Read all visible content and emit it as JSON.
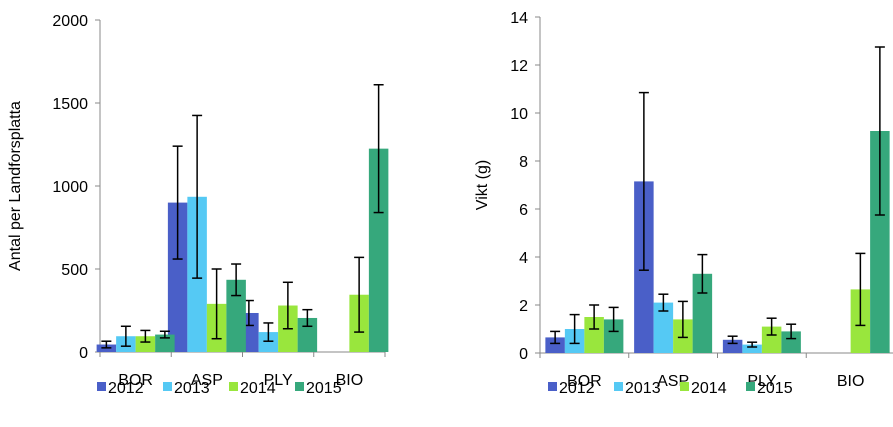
{
  "chart_data": [
    {
      "type": "bar",
      "categories": [
        "BOR",
        "ASP",
        "PLY",
        "BIO"
      ],
      "ylabel": "Antal per Landforsplatta",
      "ylim": [
        0,
        2000
      ],
      "yticks": [
        0,
        500,
        1000,
        1500,
        2000
      ],
      "grid": false,
      "legend_position": "bottom",
      "series": [
        {
          "name": "2012",
          "color": "#4a5fc8",
          "values": [
            45,
            900,
            235,
            null
          ],
          "error": [
            20,
            340,
            75,
            null
          ]
        },
        {
          "name": "2013",
          "color": "#55c9f4",
          "values": [
            95,
            935,
            120,
            null
          ],
          "error": [
            60,
            490,
            55,
            null
          ]
        },
        {
          "name": "2014",
          "color": "#99e63d",
          "values": [
            95,
            290,
            280,
            345
          ],
          "error": [
            35,
            210,
            140,
            225
          ]
        },
        {
          "name": "2015",
          "color": "#36a87c",
          "values": [
            105,
            435,
            205,
            1225
          ],
          "error": [
            20,
            95,
            50,
            385
          ]
        }
      ]
    },
    {
      "type": "bar",
      "categories": [
        "BOR",
        "ASP",
        "PLY",
        "BIO"
      ],
      "ylabel": "Vikt (g)",
      "ylim": [
        0,
        14
      ],
      "yticks": [
        0,
        2,
        4,
        6,
        8,
        10,
        12,
        14
      ],
      "grid": false,
      "legend_position": "bottom",
      "series": [
        {
          "name": "2012",
          "color": "#4a5fc8",
          "values": [
            0.65,
            7.15,
            0.55,
            null
          ],
          "error": [
            0.25,
            3.7,
            0.15,
            null
          ]
        },
        {
          "name": "2013",
          "color": "#55c9f4",
          "values": [
            1.0,
            2.1,
            0.35,
            null
          ],
          "error": [
            0.6,
            0.35,
            0.1,
            null
          ]
        },
        {
          "name": "2014",
          "color": "#99e63d",
          "values": [
            1.5,
            1.4,
            1.1,
            2.65
          ],
          "error": [
            0.5,
            0.75,
            0.35,
            1.5
          ]
        },
        {
          "name": "2015",
          "color": "#36a87c",
          "values": [
            1.4,
            3.3,
            0.9,
            9.25
          ],
          "error": [
            0.5,
            0.8,
            0.3,
            3.5
          ]
        }
      ]
    }
  ]
}
